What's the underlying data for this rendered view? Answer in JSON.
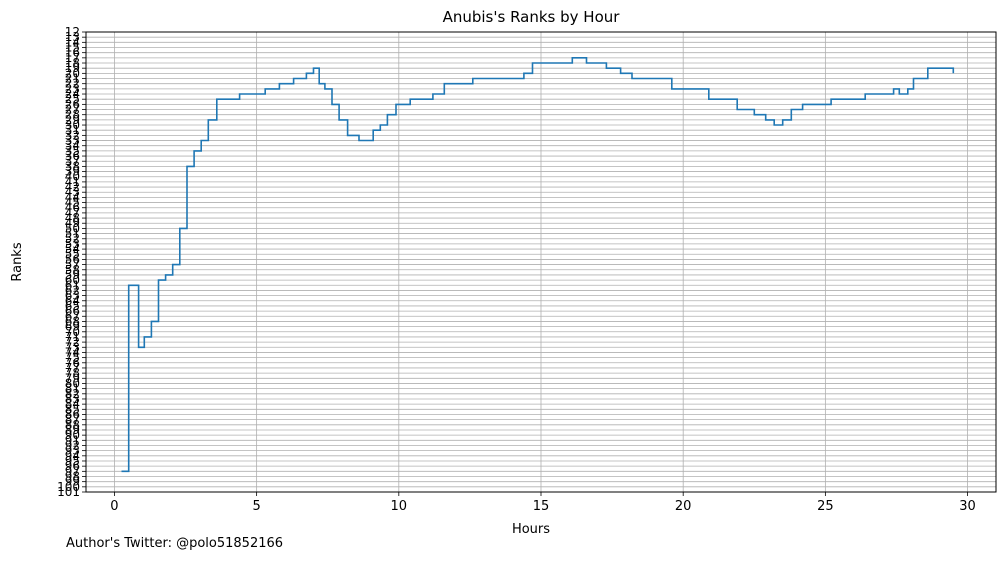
{
  "chart_data": {
    "type": "line",
    "title": "Anubis's Ranks by Hour",
    "xlabel": "Hours",
    "ylabel": "Ranks",
    "xlim": [
      -1,
      31
    ],
    "ylim": [
      101,
      12
    ],
    "y_inverted": true,
    "x_ticks": [
      0,
      5,
      10,
      15,
      20,
      25,
      30
    ],
    "y_ticks": [
      12,
      13,
      14,
      15,
      16,
      17,
      18,
      19,
      20,
      21,
      22,
      23,
      24,
      25,
      26,
      27,
      28,
      29,
      30,
      31,
      32,
      33,
      34,
      35,
      36,
      37,
      38,
      39,
      40,
      41,
      42,
      43,
      44,
      45,
      46,
      47,
      48,
      49,
      50,
      51,
      52,
      53,
      54,
      55,
      56,
      57,
      58,
      59,
      60,
      61,
      62,
      63,
      64,
      65,
      66,
      67,
      68,
      69,
      70,
      71,
      72,
      73,
      74,
      75,
      76,
      77,
      78,
      79,
      80,
      81,
      82,
      83,
      84,
      85,
      86,
      87,
      88,
      89,
      90,
      91,
      92,
      93,
      94,
      95,
      96,
      97,
      98,
      99,
      100,
      101
    ],
    "grid": true,
    "step": "post",
    "line_color": "#1f77b4",
    "series": [
      {
        "x": [
          0.25,
          0.5,
          0.85,
          1.05,
          1.3,
          1.55,
          1.8,
          2.05,
          2.3,
          2.55,
          2.8,
          3.05,
          3.3,
          3.6,
          4.4,
          5.3,
          5.8,
          6.3,
          6.75,
          7.0,
          7.2,
          7.4,
          7.65,
          7.9,
          8.2,
          8.6,
          9.1,
          9.35,
          9.6,
          9.9,
          10.4,
          11.2,
          11.6,
          12.6,
          14.4,
          14.7,
          16.1,
          16.6,
          17.3,
          17.8,
          18.2,
          19.6,
          20.9,
          21.9,
          22.5,
          22.9,
          23.2,
          23.5,
          23.8,
          24.2,
          25.2,
          26.4,
          27.4,
          27.6,
          27.9,
          28.1,
          28.6,
          29.5
        ],
        "y": [
          97,
          61,
          73,
          71,
          68,
          60,
          59,
          57,
          50,
          38,
          35,
          33,
          29,
          25,
          24,
          23,
          22,
          21,
          20,
          19,
          22,
          23,
          26,
          29,
          32,
          33,
          31,
          30,
          28,
          26,
          25,
          24,
          22,
          21,
          20,
          18,
          17,
          18,
          19,
          20,
          21,
          23,
          25,
          27,
          28,
          29,
          30,
          29,
          27,
          26,
          25,
          24,
          23,
          24,
          23,
          21,
          19,
          20
        ]
      }
    ]
  },
  "footer": {
    "credit": "Author's Twitter: @polo51852166"
  }
}
